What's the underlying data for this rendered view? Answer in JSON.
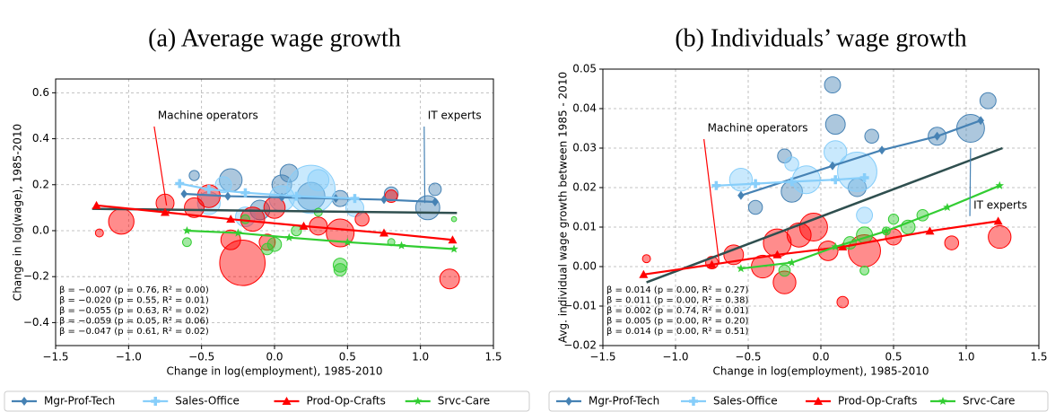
{
  "chart_data": [
    {
      "type": "scatter",
      "title": "(a) Average wage growth",
      "xlabel": "Change in log(employment), 1985-2010",
      "ylabel": "Change in log(wage), 1985-2010",
      "xlim": [
        -1.5,
        1.5
      ],
      "ylim": [
        -0.5,
        0.66
      ],
      "grid": true,
      "legend": "below",
      "xticks": [
        {
          "value": -1.5,
          "label": "−1.5"
        },
        {
          "value": -1.0,
          "label": "−1.0"
        },
        {
          "value": -0.5,
          "label": "−0.5"
        },
        {
          "value": 0.0,
          "label": "0.0"
        },
        {
          "value": 0.5,
          "label": "0.5"
        },
        {
          "value": 1.0,
          "label": "1.0"
        },
        {
          "value": 1.5,
          "label": "1.5"
        }
      ],
      "yticks": [
        {
          "value": -0.4,
          "label": "−0.4"
        },
        {
          "value": -0.2,
          "label": "−0.2"
        },
        {
          "value": 0.0,
          "label": "0.0"
        },
        {
          "value": 0.2,
          "label": "0.2"
        },
        {
          "value": 0.4,
          "label": "0.4"
        },
        {
          "value": 0.6,
          "label": "0.6"
        }
      ],
      "series": [
        {
          "name": "Mgr-Prof-Tech",
          "color": "#4682b4",
          "marker": "diamond",
          "line": {
            "x": [
              -0.62,
              -0.32,
              0.05,
              0.42,
              0.75,
              1.1
            ],
            "y": [
              0.16,
              0.15,
              0.145,
              0.14,
              0.135,
              0.125
            ]
          },
          "x": [
            -0.3,
            0.05,
            0.1,
            0.25,
            0.45,
            0.8,
            1.05,
            1.1,
            -0.55,
            -0.1
          ],
          "y": [
            0.22,
            0.2,
            0.25,
            0.15,
            0.14,
            0.16,
            0.1,
            0.18,
            0.24,
            0.09
          ],
          "sizes": [
            40,
            30,
            25,
            60,
            20,
            15,
            45,
            12,
            8,
            30
          ]
        },
        {
          "name": "Sales-Office",
          "color": "#87cefa",
          "marker": "plus",
          "line": {
            "x": [
              -0.65,
              -0.45,
              -0.2,
              0.15,
              0.55
            ],
            "y": [
              0.205,
              0.18,
              0.165,
              0.15,
              0.14
            ]
          },
          "x": [
            0.25,
            0.05,
            -0.45,
            -0.2,
            0.55,
            -0.35,
            0.3
          ],
          "y": [
            0.18,
            0.14,
            0.12,
            0.06,
            0.1,
            0.2,
            0.22
          ],
          "sizes": [
            180,
            50,
            40,
            30,
            25,
            20,
            35
          ]
        },
        {
          "name": "Prod-Op-Crafts",
          "color": "#ff0000",
          "marker": "triangle",
          "line": {
            "x": [
              -1.22,
              -0.75,
              -0.3,
              0.2,
              0.75,
              1.22
            ],
            "y": [
              0.11,
              0.08,
              0.05,
              0.02,
              -0.01,
              -0.04
            ]
          },
          "x": [
            -0.22,
            -1.05,
            -0.75,
            -0.45,
            -0.15,
            0,
            -0.3,
            0.3,
            0.45,
            0.8,
            1.2,
            -0.55,
            -0.05,
            -1.2,
            0.6
          ],
          "y": [
            -0.14,
            0.04,
            0.12,
            0.15,
            0.05,
            0.1,
            -0.04,
            0.02,
            -0.01,
            0.15,
            -0.21,
            0.1,
            -0.05,
            -0.01,
            0.05
          ],
          "sizes": [
            160,
            50,
            25,
            40,
            45,
            35,
            30,
            25,
            60,
            12,
            30,
            30,
            20,
            5,
            15
          ]
        },
        {
          "name": "Srvc-Care",
          "color": "#32cd32",
          "marker": "star",
          "line": {
            "x": [
              -0.6,
              -0.25,
              0.1,
              0.5,
              0.87,
              1.23
            ],
            "y": [
              0.0,
              -0.01,
              -0.03,
              -0.05,
              -0.065,
              -0.08
            ]
          },
          "x": [
            0.45,
            0.45,
            0,
            -0.05,
            0.15,
            -0.6,
            0.8,
            1.23,
            0.3,
            -0.2
          ],
          "y": [
            -0.15,
            -0.17,
            -0.06,
            -0.08,
            0.0,
            -0.05,
            -0.05,
            0.05,
            0.08,
            0.05
          ],
          "sizes": [
            15,
            12,
            15,
            10,
            8,
            6,
            4,
            2,
            5,
            6
          ]
        }
      ],
      "fit": {
        "color": "#2f4f4f",
        "x": [
          -1.25,
          1.25
        ],
        "y": [
          0.095,
          0.077
        ]
      },
      "annotations": [
        {
          "text": "Machine operators",
          "color": "#ff0000",
          "xytext": [
            -0.8,
            0.5
          ],
          "xy": [
            -0.74,
            0.11
          ]
        },
        {
          "text": "IT experts",
          "color": "#4682b4",
          "xytext": [
            1.05,
            0.5
          ],
          "xy": [
            1.03,
            0.12
          ]
        }
      ],
      "stats": [
        {
          "text": "β = −0.007 (p = 0.76, R² = 0.00)",
          "color": "#2f4f4f"
        },
        {
          "text": "β = −0.020 (p = 0.55, R² = 0.01)",
          "color": "#4682b4"
        },
        {
          "text": "β = −0.055 (p = 0.63, R² = 0.02)",
          "color": "#87cefa"
        },
        {
          "text": "β = −0.059 (p = 0.05, R² = 0.06)",
          "color": "#ff0000"
        },
        {
          "text": "β = −0.047 (p = 0.61, R² = 0.02)",
          "color": "#32cd32"
        }
      ]
    },
    {
      "type": "scatter",
      "title": "(b) Individuals’ wage growth",
      "xlabel": "Change in log(employment), 1985-2010",
      "ylabel": "Avg. individual wage growth between 1985 - 2010",
      "xlim": [
        -1.5,
        1.5
      ],
      "ylim": [
        -0.02,
        0.05
      ],
      "grid": true,
      "legend": "below",
      "xticks": [
        {
          "value": -1.5,
          "label": "−1.5"
        },
        {
          "value": -1.0,
          "label": "−1.0"
        },
        {
          "value": -0.5,
          "label": "−0.5"
        },
        {
          "value": 0.0,
          "label": "0.0"
        },
        {
          "value": 0.5,
          "label": "0.5"
        },
        {
          "value": 1.0,
          "label": "1.0"
        },
        {
          "value": 1.5,
          "label": "1.5"
        }
      ],
      "yticks": [
        {
          "value": -0.02,
          "label": "−0.02"
        },
        {
          "value": -0.01,
          "label": "−0.01"
        },
        {
          "value": 0.0,
          "label": "0.00"
        },
        {
          "value": 0.01,
          "label": "0.01"
        },
        {
          "value": 0.02,
          "label": "0.02"
        },
        {
          "value": 0.03,
          "label": "0.03"
        },
        {
          "value": 0.04,
          "label": "0.04"
        },
        {
          "value": 0.05,
          "label": "0.05"
        }
      ],
      "series": [
        {
          "name": "Mgr-Prof-Tech",
          "color": "#4682b4",
          "marker": "diamond",
          "line": {
            "x": [
              -0.55,
              0.08,
              0.42,
              0.8,
              1.1
            ],
            "y": [
              0.018,
              0.0255,
              0.0295,
              0.033,
              0.037
            ]
          },
          "x": [
            0.08,
            0.1,
            -0.2,
            -0.25,
            0.35,
            1.03,
            1.15,
            0.8,
            -0.45,
            0.25
          ],
          "y": [
            0.046,
            0.036,
            0.019,
            0.028,
            0.033,
            0.035,
            0.042,
            0.033,
            0.015,
            0.02
          ],
          "sizes": [
            20,
            30,
            35,
            15,
            15,
            60,
            20,
            25,
            15,
            25
          ]
        },
        {
          "name": "Sales-Office",
          "color": "#87cefa",
          "marker": "plus",
          "line": {
            "x": [
              -0.72,
              -0.45,
              -0.2,
              0.1,
              0.3
            ],
            "y": [
              0.0205,
              0.021,
              0.0215,
              0.022,
              0.0225
            ]
          },
          "x": [
            0.25,
            -0.1,
            0.1,
            -0.55,
            0.3,
            -0.2
          ],
          "y": [
            0.024,
            0.022,
            0.029,
            0.022,
            0.013,
            0.026
          ],
          "sizes": [
            120,
            60,
            40,
            40,
            20,
            15
          ]
        },
        {
          "name": "Prod-Op-Crafts",
          "color": "#ff0000",
          "marker": "triangle",
          "line": {
            "x": [
              -1.22,
              -0.75,
              -0.3,
              0.15,
              0.75,
              1.22
            ],
            "y": [
              -0.002,
              0.0005,
              0.003,
              0.005,
              0.009,
              0.0115
            ]
          },
          "x": [
            -0.3,
            -0.15,
            -0.05,
            0.15,
            0.3,
            0.9,
            1.23,
            -0.6,
            -0.4,
            -0.25,
            0.05,
            -1.2,
            -0.75,
            0.5
          ],
          "y": [
            0.006,
            0.008,
            0.01,
            -0.009,
            0.004,
            0.006,
            0.0075,
            0.003,
            0.0,
            -0.004,
            0.004,
            0.002,
            0.001,
            0.0075
          ],
          "sizes": [
            60,
            45,
            60,
            10,
            80,
            15,
            40,
            30,
            40,
            40,
            30,
            5,
            12,
            20
          ]
        },
        {
          "name": "Srvc-Care",
          "color": "#32cd32",
          "marker": "star",
          "line": {
            "x": [
              -0.55,
              -0.2,
              0.1,
              0.45,
              0.87,
              1.23
            ],
            "y": [
              -0.0005,
              0.001,
              0.005,
              0.009,
              0.015,
              0.0205
            ]
          },
          "x": [
            0.3,
            0.6,
            0.7,
            0.5,
            0.2,
            -0.25,
            0.45,
            0.3
          ],
          "y": [
            0.008,
            0.01,
            0.013,
            0.012,
            0.006,
            -0.001,
            0.009,
            -0.001
          ],
          "sizes": [
            20,
            15,
            10,
            8,
            12,
            10,
            5,
            6
          ]
        }
      ],
      "fit": {
        "color": "#2f4f4f",
        "x": [
          -1.2,
          1.25
        ],
        "y": [
          -0.004,
          0.03
        ]
      },
      "annotations": [
        {
          "text": "Machine operators",
          "color": "#ff0000",
          "xytext": [
            -0.78,
            0.035
          ],
          "xy": [
            -0.7,
            0.001
          ]
        },
        {
          "text": "IT experts",
          "color": "#4682b4",
          "xytext": [
            1.05,
            0.0155
          ],
          "xy": [
            1.03,
            0.03
          ]
        }
      ],
      "stats": [
        {
          "text": "β = 0.014 (p = 0.00, R² = 0.27)",
          "color": "#2f4f4f"
        },
        {
          "text": "β = 0.011 (p = 0.00, R² = 0.38)",
          "color": "#4682b4"
        },
        {
          "text": "β = 0.002 (p = 0.74, R² = 0.01)",
          "color": "#87cefa"
        },
        {
          "text": "β = 0.005 (p = 0.00, R² = 0.20)",
          "color": "#ff0000"
        },
        {
          "text": "β = 0.014 (p = 0.00, R² = 0.51)",
          "color": "#32cd32"
        }
      ]
    }
  ]
}
